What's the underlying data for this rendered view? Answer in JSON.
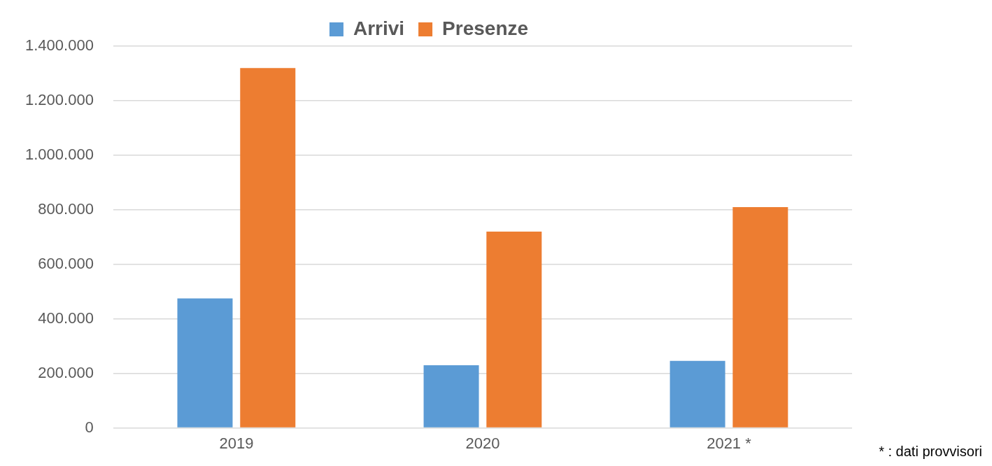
{
  "chart_data": {
    "type": "bar",
    "categories": [
      "2019",
      "2020",
      "2021 *"
    ],
    "series": [
      {
        "name": "Arrivi",
        "color": "#5b9bd5",
        "values": [
          475000,
          230000,
          246000
        ]
      },
      {
        "name": "Presenze",
        "color": "#ed7d31",
        "values": [
          1320000,
          720000,
          810000
        ]
      }
    ],
    "ylim": [
      0,
      1400000
    ],
    "yticks": [
      0,
      {
        "value": 200000,
        "label": "200.000"
      },
      {
        "value": 400000,
        "label": "400.000"
      },
      {
        "value": 600000,
        "label": "600.000"
      },
      {
        "value": 800000,
        "label": "800.000"
      },
      {
        "value": 1000000,
        "label": "1.000.000"
      },
      {
        "value": 1200000,
        "label": "1.200.000"
      },
      {
        "value": 1400000,
        "label": "1.400.000"
      }
    ],
    "grid": "y",
    "legend": "top",
    "annotations": [
      "* : dati provvisori"
    ]
  }
}
